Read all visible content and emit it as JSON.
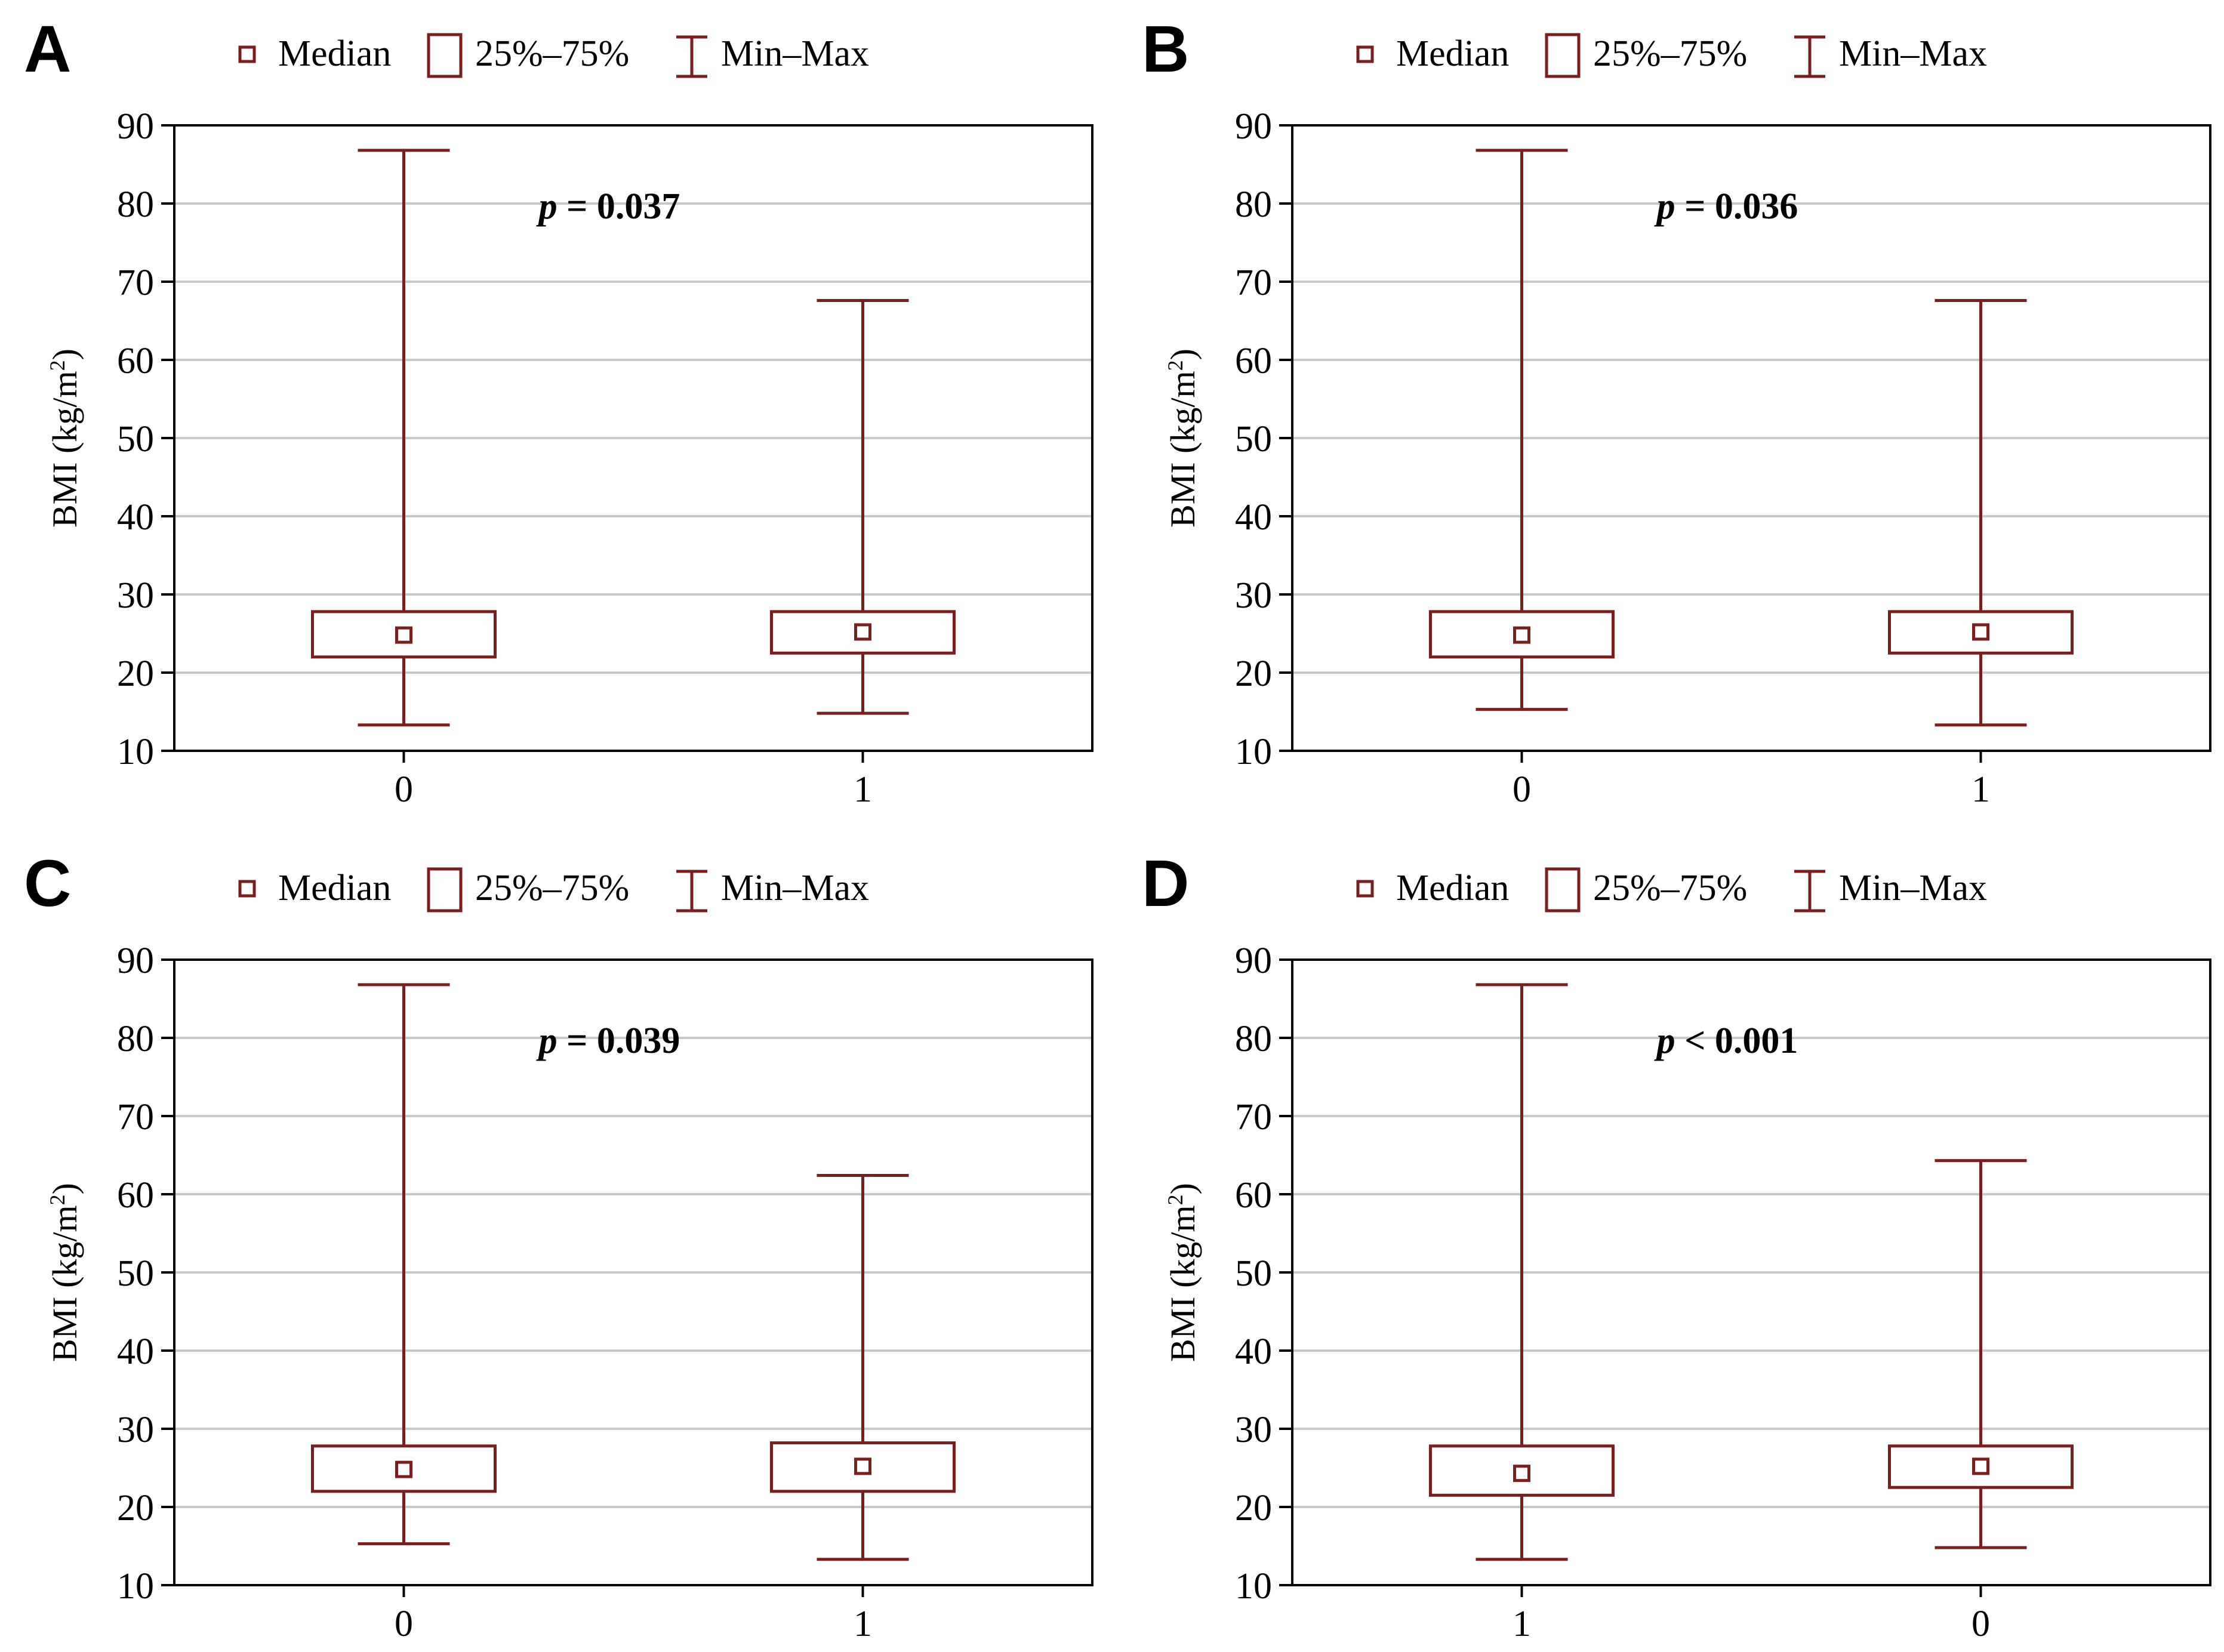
{
  "legend": {
    "median": "Median",
    "iqr": "25%–75%",
    "minmax": "Min–Max"
  },
  "colors": {
    "box": "#7b1e1e",
    "grid": "#c8c8c8",
    "axis": "#000000"
  },
  "chart_data": [
    {
      "type": "box",
      "panel": "A",
      "ylabel": "BMI (kg/m",
      "ylabel_sup": "2",
      "ylabel_close": ")",
      "ylim": [
        10,
        90
      ],
      "yticks": [
        10,
        20,
        30,
        40,
        50,
        60,
        70,
        80,
        90
      ],
      "grid": true,
      "legend_position": "top",
      "categories": [
        "0",
        "1"
      ],
      "boxes": [
        {
          "category": "0",
          "min": 13.3,
          "q1": 22.0,
          "median": 24.8,
          "q3": 27.8,
          "max": 86.8
        },
        {
          "category": "1",
          "min": 14.8,
          "q1": 22.5,
          "median": 25.2,
          "q3": 27.8,
          "max": 67.6
        }
      ],
      "annotation": {
        "prefix": "p",
        "text": " = 0.037"
      }
    },
    {
      "type": "box",
      "panel": "B",
      "ylabel": "BMI (kg/m",
      "ylabel_sup": "2",
      "ylabel_close": ")",
      "ylim": [
        10,
        90
      ],
      "yticks": [
        10,
        20,
        30,
        40,
        50,
        60,
        70,
        80,
        90
      ],
      "grid": true,
      "legend_position": "top",
      "categories": [
        "0",
        "1"
      ],
      "boxes": [
        {
          "category": "0",
          "min": 15.3,
          "q1": 22.0,
          "median": 24.8,
          "q3": 27.8,
          "max": 86.8
        },
        {
          "category": "1",
          "min": 13.3,
          "q1": 22.5,
          "median": 25.2,
          "q3": 27.8,
          "max": 67.6
        }
      ],
      "annotation": {
        "prefix": "p",
        "text": " = 0.036"
      }
    },
    {
      "type": "box",
      "panel": "C",
      "ylabel": "BMI (kg/m",
      "ylabel_sup": "2",
      "ylabel_close": ")",
      "ylim": [
        10,
        90
      ],
      "yticks": [
        10,
        20,
        30,
        40,
        50,
        60,
        70,
        80,
        90
      ],
      "grid": true,
      "legend_position": "top",
      "categories": [
        "0",
        "1"
      ],
      "boxes": [
        {
          "category": "0",
          "min": 15.3,
          "q1": 22.0,
          "median": 24.8,
          "q3": 27.8,
          "max": 86.8
        },
        {
          "category": "1",
          "min": 13.3,
          "q1": 22.0,
          "median": 25.2,
          "q3": 28.2,
          "max": 62.4
        }
      ],
      "annotation": {
        "prefix": "p",
        "text": " = 0.039"
      }
    },
    {
      "type": "box",
      "panel": "D",
      "ylabel": "BMI (kg/m",
      "ylabel_sup": "2",
      "ylabel_close": ")",
      "ylim": [
        10,
        90
      ],
      "yticks": [
        10,
        20,
        30,
        40,
        50,
        60,
        70,
        80,
        90
      ],
      "grid": true,
      "legend_position": "top",
      "categories": [
        "1",
        "0"
      ],
      "boxes": [
        {
          "category": "1",
          "min": 13.3,
          "q1": 21.5,
          "median": 24.3,
          "q3": 27.8,
          "max": 86.8
        },
        {
          "category": "0",
          "min": 14.8,
          "q1": 22.5,
          "median": 25.2,
          "q3": 27.8,
          "max": 64.3
        }
      ],
      "annotation": {
        "prefix": "p",
        "text": " < 0.001"
      }
    }
  ]
}
